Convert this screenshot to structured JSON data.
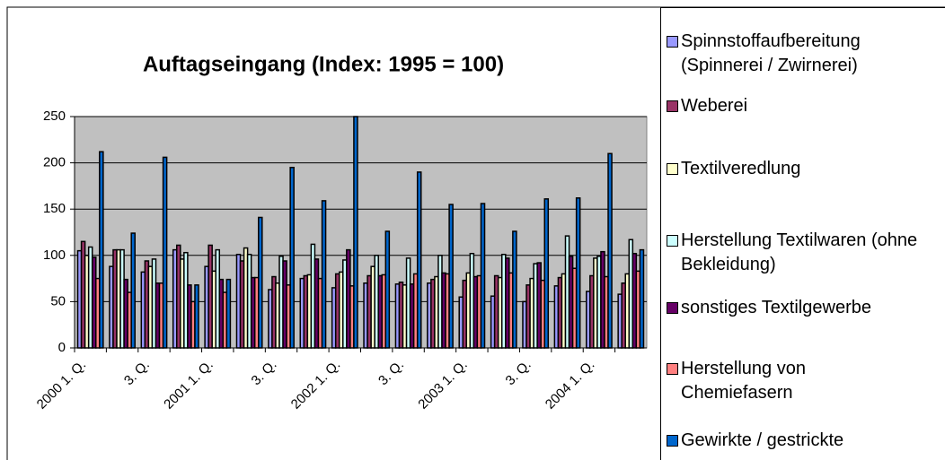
{
  "chart_data": {
    "type": "bar",
    "title": "Auftagseingang (Index: 1995 = 100)",
    "categories": [
      "2000 1. Q.",
      null,
      "3. Q.",
      null,
      "2001 1. Q.",
      null,
      "3. Q.",
      null,
      "2002 1. Q.",
      null,
      "3. Q.",
      null,
      "2003 1. Q.",
      null,
      "3. Q.",
      null,
      "2004 1. Q.",
      null
    ],
    "ylim": [
      0,
      250
    ],
    "yticks": [
      0,
      50,
      100,
      150,
      200,
      250
    ],
    "grid": true,
    "series": [
      {
        "name": "Spinnstoffaufbereitung (Spinnerei / Zwirnerei)",
        "color": "#9999ff",
        "values": [
          105,
          88,
          82,
          106,
          88,
          101,
          63,
          75,
          65,
          70,
          69,
          70,
          55,
          56,
          50,
          67,
          61,
          58
        ]
      },
      {
        "name": "Weberei",
        "color": "#993366",
        "values": [
          115,
          106,
          94,
          111,
          111,
          94,
          77,
          78,
          80,
          78,
          71,
          74,
          73,
          78,
          68,
          76,
          78,
          70
        ]
      },
      {
        "name": "Textilveredlung",
        "color": "#ffffcc",
        "values": [
          100,
          106,
          88,
          96,
          83,
          108,
          70,
          79,
          82,
          88,
          68,
          77,
          81,
          76,
          75,
          80,
          97,
          80
        ]
      },
      {
        "name": "Herstellung Textilwaren (ohne Bekleidung)",
        "color": "#ccffff",
        "values": [
          109,
          106,
          96,
          103,
          106,
          101,
          99,
          112,
          95,
          100,
          97,
          100,
          102,
          101,
          91,
          121,
          99,
          117
        ]
      },
      {
        "name": "sonstiges Textilgewerbe",
        "color": "#660066",
        "values": [
          98,
          74,
          70,
          68,
          74,
          76,
          94,
          96,
          106,
          78,
          69,
          81,
          77,
          97,
          92,
          99,
          104,
          102
        ]
      },
      {
        "name": "Herstellung von Chemiefasern",
        "color": "#ff8080",
        "values": [
          75,
          60,
          70,
          50,
          60,
          76,
          68,
          75,
          67,
          79,
          80,
          80,
          78,
          81,
          73,
          86,
          77,
          83
        ]
      },
      {
        "name": "Gewirkte / gestrickte",
        "color": "#0066cc",
        "values": [
          212,
          124,
          206,
          68,
          74,
          141,
          195,
          159,
          250,
          126,
          190,
          155,
          156,
          126,
          161,
          162,
          210,
          106
        ]
      }
    ]
  }
}
